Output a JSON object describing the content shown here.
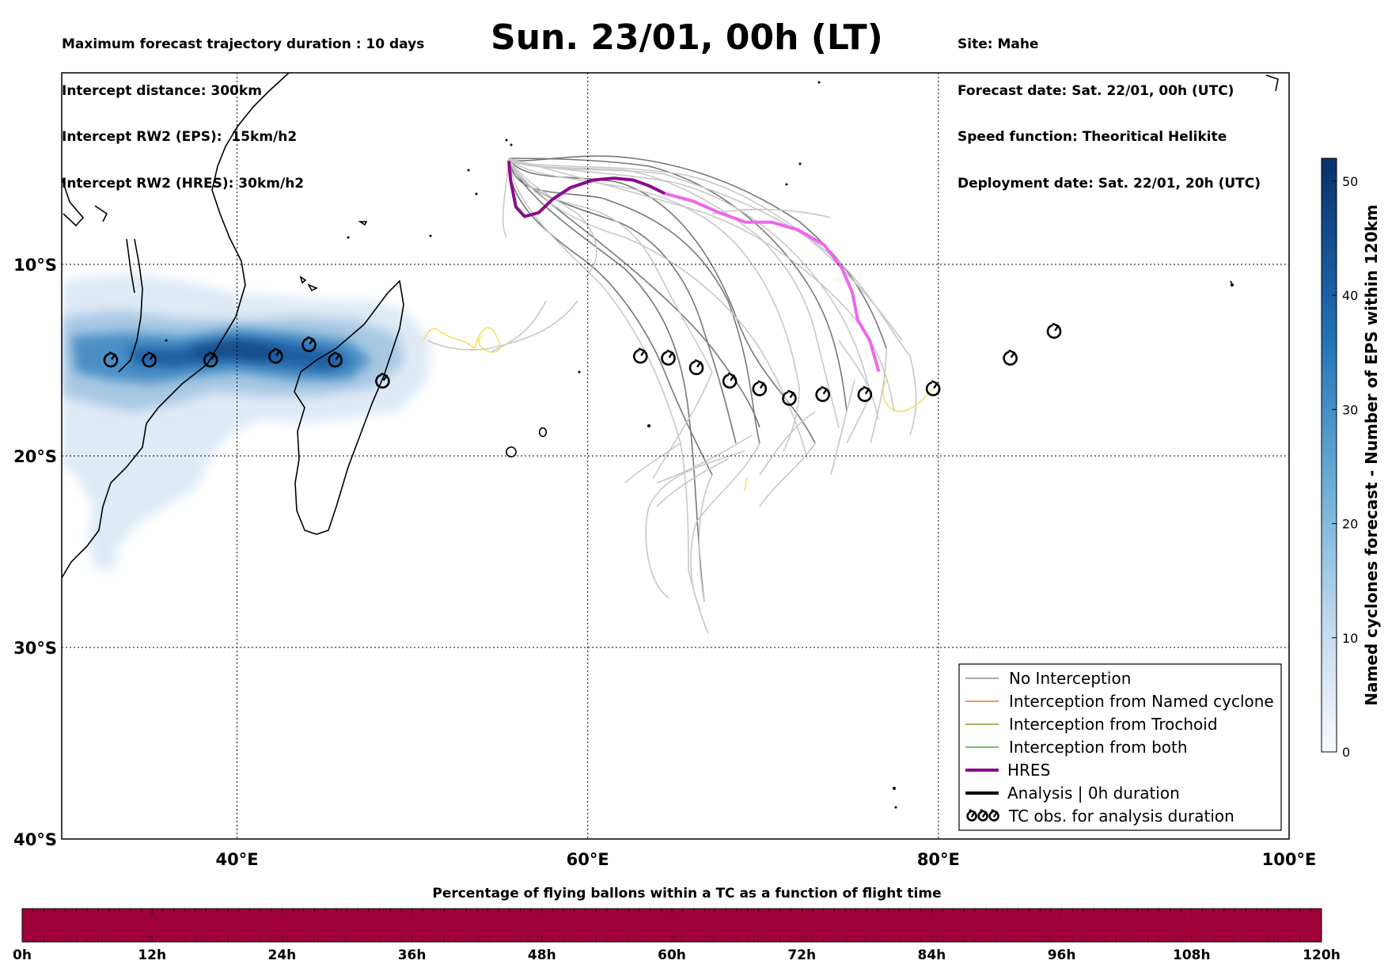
{
  "header": {
    "left": [
      "Maximum forecast trajectory duration : 10 days",
      "Intercept distance: 300km",
      "Intercept RW2 (EPS):  15km/h2",
      "Intercept RW2 (HRES): 30km/h2"
    ],
    "title": "Sun. 23/01, 00h (LT)",
    "right": [
      "Site: Mahe",
      "Forecast date: Sat. 22/01, 00h (UTC)",
      "Speed function: Theoritical Helikite",
      "Deployment date: Sat. 22/01, 20h (UTC)"
    ]
  },
  "map": {
    "lon_range": [
      30,
      100
    ],
    "lat_range": [
      0,
      -40
    ],
    "x_ticks": [
      {
        "lon": 40,
        "label": "40°E"
      },
      {
        "lon": 60,
        "label": "60°E"
      },
      {
        "lon": 80,
        "label": "80°E"
      },
      {
        "lon": 100,
        "label": "100°E"
      }
    ],
    "y_ticks": [
      {
        "lat": -10,
        "label": "10°S"
      },
      {
        "lat": -20,
        "label": "20°S"
      },
      {
        "lat": -30,
        "label": "30°S"
      },
      {
        "lat": -40,
        "label": "40°S"
      }
    ],
    "site": {
      "name": "Mahe",
      "lon": 55.5,
      "lat": -4.6
    },
    "hres_track": [
      [
        55.5,
        -4.6
      ],
      [
        55.6,
        -5.6
      ],
      [
        55.9,
        -7.0
      ],
      [
        56.4,
        -7.5
      ],
      [
        57.2,
        -7.3
      ],
      [
        58.0,
        -6.6
      ],
      [
        59.0,
        -6.0
      ],
      [
        60.3,
        -5.6
      ],
      [
        61.5,
        -5.5
      ],
      [
        62.6,
        -5.6
      ],
      [
        63.5,
        -5.9
      ],
      [
        64.4,
        -6.3
      ],
      [
        66.0,
        -6.7
      ],
      [
        67.5,
        -7.3
      ],
      [
        69.0,
        -7.8
      ],
      [
        70.5,
        -7.8
      ],
      [
        72.0,
        -8.2
      ],
      [
        73.5,
        -9.0
      ],
      [
        74.5,
        -10.2
      ],
      [
        75.1,
        -11.5
      ],
      [
        75.4,
        -12.9
      ],
      [
        76.1,
        -14.0
      ],
      [
        76.6,
        -15.6
      ]
    ],
    "hres_color": "#8b0a8b",
    "hres_color_late": "#ee66ee",
    "eps_color_dark": "#777777",
    "eps_color_light": "#c8c8c8",
    "trochoid_color": "#f0e060",
    "tc_obs": [
      [
        32.8,
        -15.0
      ],
      [
        35.0,
        -15.0
      ],
      [
        38.5,
        -15.0
      ],
      [
        42.2,
        -14.8
      ],
      [
        44.1,
        -14.2
      ],
      [
        45.6,
        -15.0
      ],
      [
        48.3,
        -16.1
      ],
      [
        63.0,
        -14.8
      ],
      [
        64.6,
        -14.9
      ],
      [
        66.2,
        -15.4
      ],
      [
        68.1,
        -16.1
      ],
      [
        69.8,
        -16.5
      ],
      [
        71.5,
        -17.0
      ],
      [
        73.4,
        -16.8
      ],
      [
        75.8,
        -16.8
      ],
      [
        79.7,
        -16.5
      ],
      [
        84.1,
        -14.9
      ],
      [
        86.6,
        -13.5
      ]
    ]
  },
  "colorbar": {
    "label": "Named cyclones forecast - Number of EPS within 120km",
    "min": 0,
    "max": 52,
    "ticks": [
      "0",
      "10",
      "20",
      "30",
      "40",
      "50"
    ]
  },
  "legend": {
    "items": [
      {
        "label": "No Interception",
        "color": "#777777",
        "style": "thin"
      },
      {
        "label": "Interception from Named cyclone",
        "color": "#f05a10",
        "style": "thin"
      },
      {
        "label": "Interception from Trochoid",
        "color": "#808000",
        "style": "thin"
      },
      {
        "label": "Interception from both",
        "color": "#1e9e1e",
        "style": "thin"
      },
      {
        "label": "HRES",
        "color": "#8b0a8b",
        "style": "thick"
      },
      {
        "label": "Analysis | 0h duration",
        "color": "#000000",
        "style": "thick"
      },
      {
        "label": "TC obs. for analysis duration",
        "color": "#000000",
        "style": "symbol"
      }
    ]
  },
  "percentage_bar": {
    "title": "Percentage of flying ballons within a TC as a function of flight time",
    "ticks": [
      "0h",
      "12h",
      "24h",
      "36h",
      "48h",
      "60h",
      "72h",
      "84h",
      "96h",
      "108h",
      "120h"
    ],
    "color": "#a0003a"
  }
}
